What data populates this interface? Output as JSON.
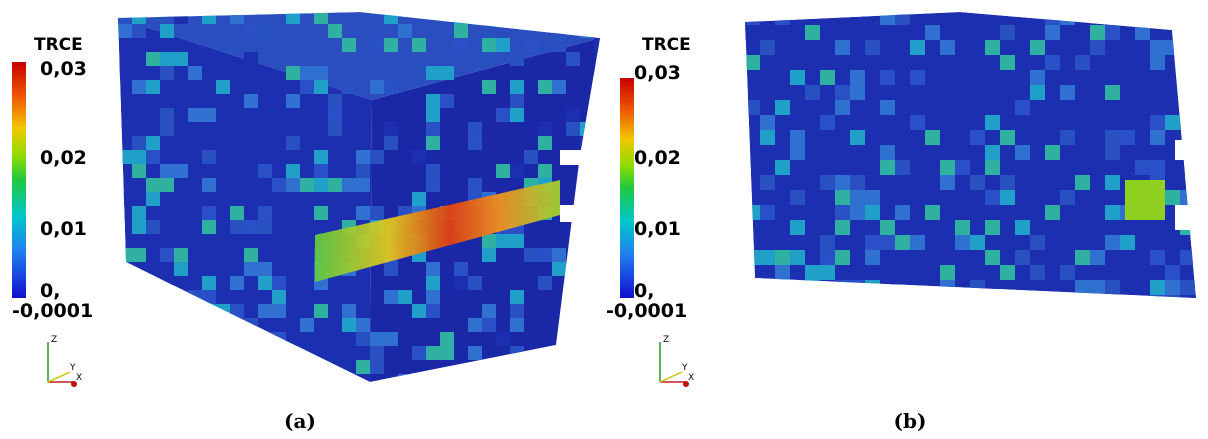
{
  "panels": [
    {
      "label": "(a)",
      "colorbar": {
        "title": "TRCE",
        "tick_labels": [
          "0,03",
          "0,02",
          "0,01",
          "0,",
          "-0,0001"
        ]
      },
      "axes": [
        "Z",
        "Y",
        "X"
      ]
    },
    {
      "label": "(b)",
      "colorbar": {
        "title": "TRCE",
        "tick_labels": [
          "0,03",
          "0,02",
          "0,01",
          "0,",
          "-0,0001"
        ]
      },
      "axes": [
        "Z",
        "Y",
        "X"
      ]
    }
  ]
}
